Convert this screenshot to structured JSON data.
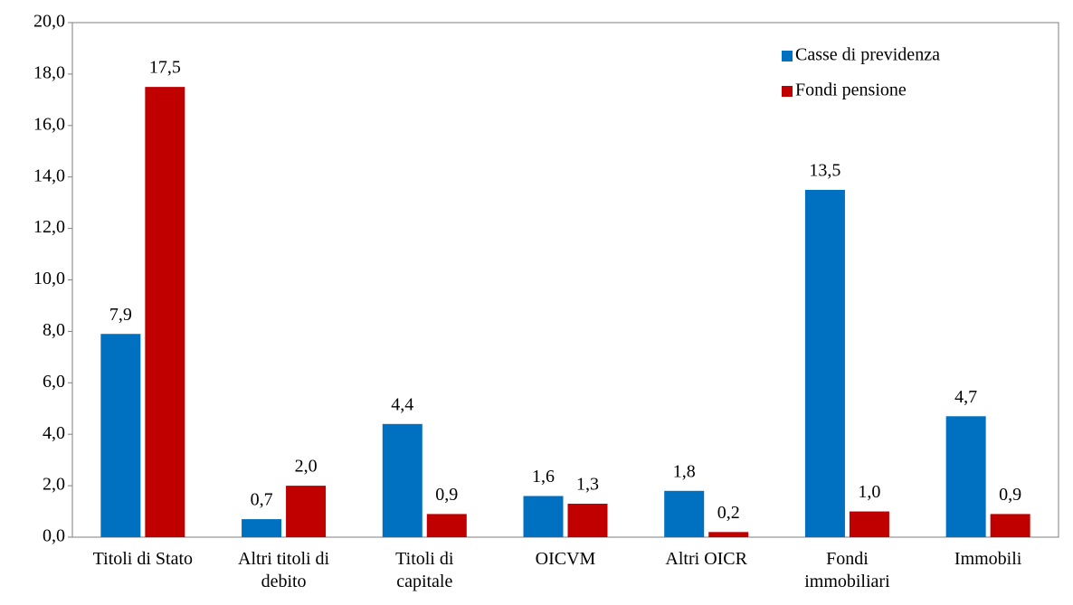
{
  "chart_data": {
    "type": "bar",
    "categories": [
      "Titoli di Stato",
      "Altri titoli di debito",
      "Titoli di capitale",
      "OICVM",
      "Altri OICR",
      "Fondi immobiliari",
      "Immobili"
    ],
    "series": [
      {
        "name": "Casse di previdenza",
        "color": "#0070c0",
        "values": [
          7.9,
          0.7,
          4.4,
          1.6,
          1.8,
          13.5,
          4.7
        ],
        "value_labels": [
          "7,9",
          "0,7",
          "4,4",
          "1,6",
          "1,8",
          "13,5",
          "4,7"
        ]
      },
      {
        "name": "Fondi pensione",
        "color": "#c00000",
        "values": [
          17.5,
          2.0,
          0.9,
          1.3,
          0.2,
          1.0,
          0.9
        ],
        "value_labels": [
          "17,5",
          "2,0",
          "0,9",
          "1,3",
          "0,2",
          "1,0",
          "0,9"
        ]
      }
    ],
    "ylim": [
      0,
      20
    ],
    "yticks": [
      {
        "value": 0,
        "label": "0,0"
      },
      {
        "value": 2,
        "label": "2,0"
      },
      {
        "value": 4,
        "label": "4,0"
      },
      {
        "value": 6,
        "label": "6,0"
      },
      {
        "value": 8,
        "label": "8,0"
      },
      {
        "value": 10,
        "label": "10,0"
      },
      {
        "value": 12,
        "label": "12,0"
      },
      {
        "value": 14,
        "label": "14,0"
      },
      {
        "value": 16,
        "label": "16,0"
      },
      {
        "value": 18,
        "label": "18,0"
      },
      {
        "value": 20,
        "label": "20,0"
      }
    ],
    "grid": false,
    "legend": "top-right"
  }
}
